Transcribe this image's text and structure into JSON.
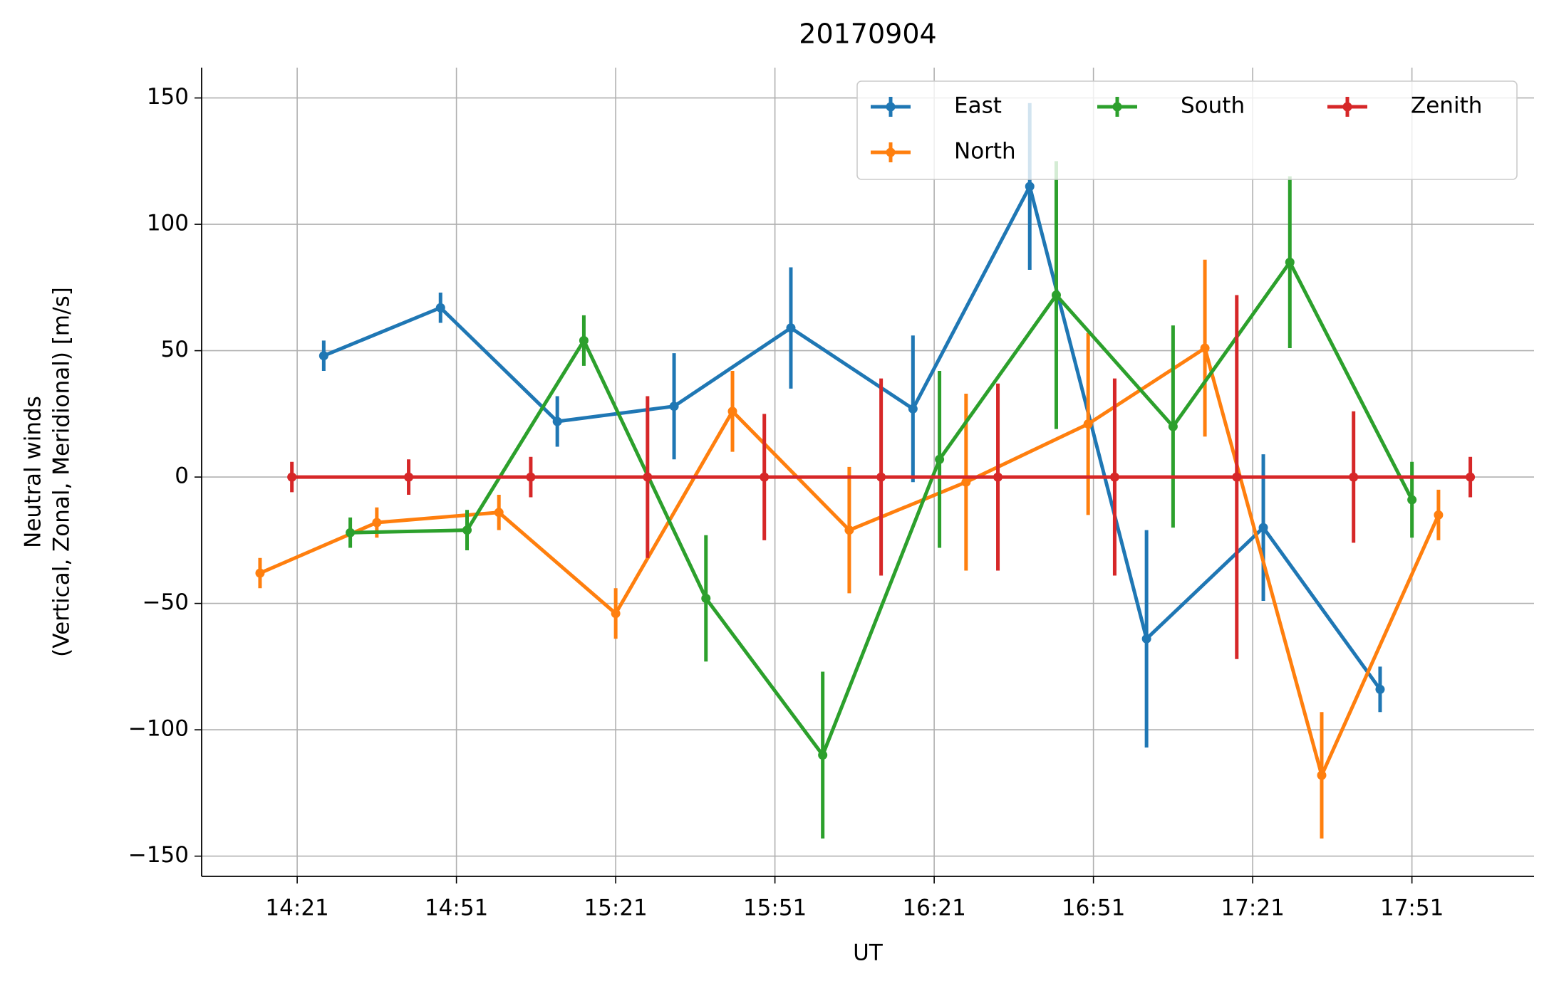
{
  "chart_data": {
    "type": "errorbar_line",
    "title": "20170904",
    "xlabel": "UT",
    "ylabel": [
      "Neutral winds",
      "(Vertical, Zonal, Meridional) [m/s]"
    ],
    "xlim": [
      "14:03",
      "18:14"
    ],
    "xticks": [
      "14:21",
      "14:51",
      "15:21",
      "15:51",
      "16:21",
      "16:51",
      "17:21",
      "17:51"
    ],
    "ylim": [
      -158,
      162
    ],
    "yticks": [
      {
        "value": -150,
        "label": "−150"
      },
      {
        "value": -100,
        "label": "−100"
      },
      {
        "value": -50,
        "label": "−50"
      },
      0,
      50,
      100,
      150
    ],
    "grid": true,
    "legend": "upper right",
    "series": [
      {
        "name": "East",
        "color": "#1f77b4",
        "x": [
          "14:26",
          "14:48",
          "15:10",
          "15:32",
          "15:54",
          "16:17",
          "16:39",
          "17:01",
          "17:23",
          "17:45"
        ],
        "values": [
          48,
          67,
          22,
          28,
          59,
          27,
          115,
          -64,
          -20,
          -84
        ],
        "errors": [
          6,
          6,
          10,
          21,
          24,
          29,
          33,
          43,
          29,
          9
        ]
      },
      {
        "name": "North",
        "color": "#ff7f0e",
        "x": [
          "14:14",
          "14:36",
          "14:59",
          "15:21",
          "15:43",
          "16:05",
          "16:27",
          "16:50",
          "17:12",
          "17:34",
          "17:56"
        ],
        "values": [
          -38,
          -18,
          -14,
          -54,
          26,
          -21,
          -2,
          21,
          51,
          -118,
          -15
        ],
        "errors": [
          6,
          6,
          7,
          10,
          16,
          25,
          35,
          36,
          35,
          25,
          10
        ]
      },
      {
        "name": "South",
        "color": "#2ca02c",
        "x": [
          "14:31",
          "14:53",
          "15:15",
          "15:38",
          "16:00",
          "16:22",
          "16:44",
          "17:06",
          "17:28",
          "17:51"
        ],
        "values": [
          -22,
          -21,
          54,
          -48,
          -110,
          7,
          72,
          20,
          85,
          -9
        ],
        "errors": [
          6,
          8,
          10,
          25,
          33,
          35,
          53,
          40,
          34,
          15
        ]
      },
      {
        "name": "Zenith",
        "color": "#d62728",
        "x": [
          "14:20",
          "14:42",
          "15:05",
          "15:27",
          "15:49",
          "16:11",
          "16:33",
          "16:55",
          "17:18",
          "17:40",
          "18:02"
        ],
        "values": [
          0,
          0,
          0,
          0,
          0,
          0,
          0,
          0,
          0,
          0,
          0
        ],
        "errors": [
          6,
          7,
          8,
          32,
          25,
          39,
          37,
          39,
          72,
          26,
          8
        ]
      }
    ]
  }
}
